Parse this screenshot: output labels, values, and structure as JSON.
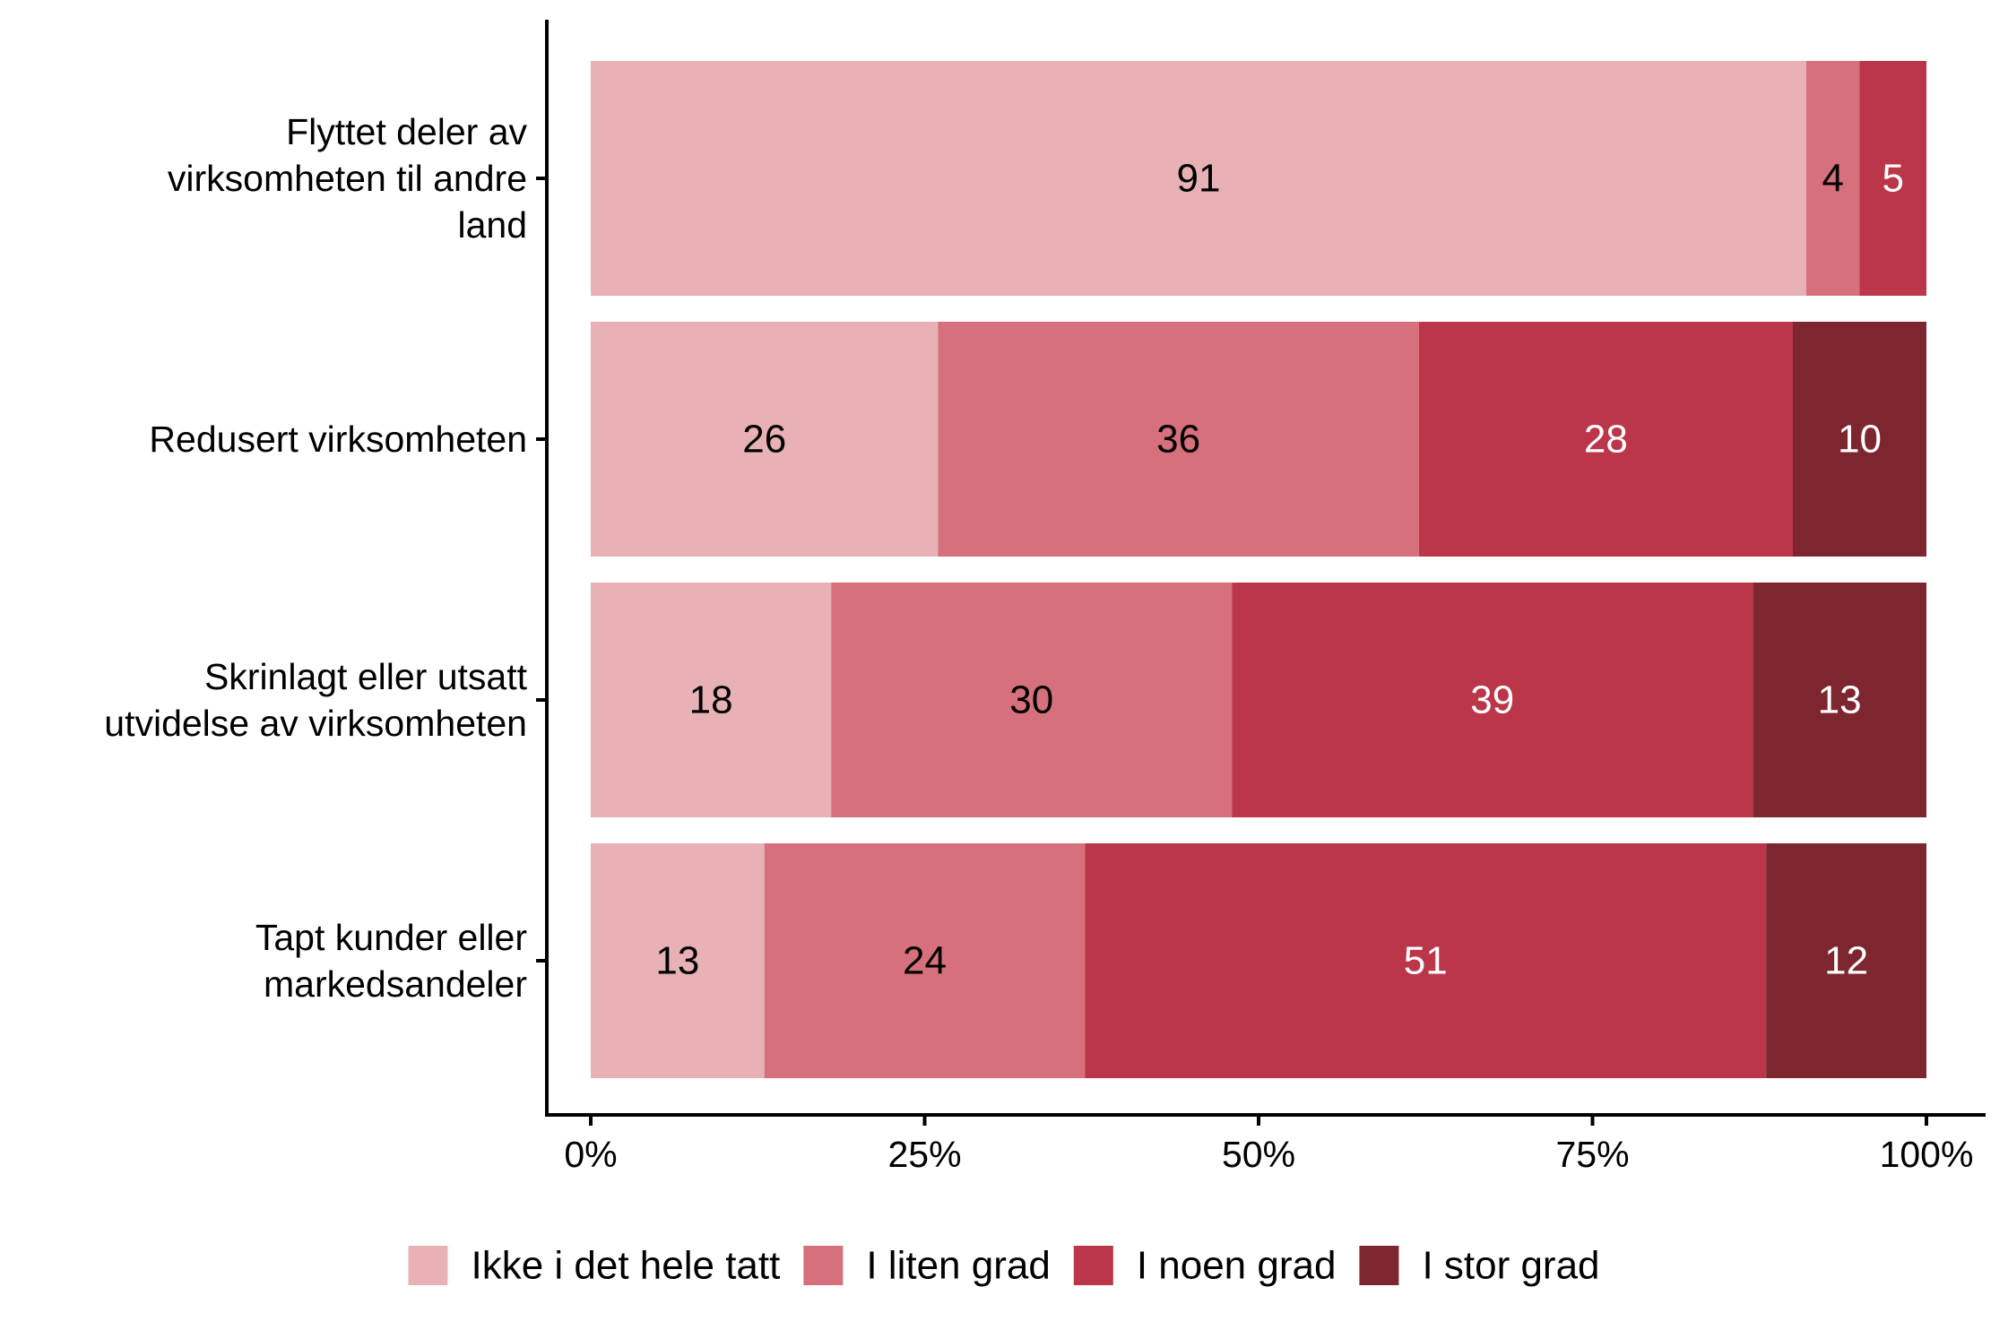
{
  "chart_data": {
    "type": "bar",
    "orientation": "horizontal",
    "stacked": true,
    "categories": [
      [
        "Flyttet deler av",
        "virksomheten til andre",
        "land"
      ],
      [
        "Redusert virksomheten"
      ],
      [
        "Skrinlagt eller utsatt",
        "utvidelse av virksomheten"
      ],
      [
        "Tapt kunder eller",
        "markedsandeler"
      ]
    ],
    "series": [
      {
        "name": "Ikke i det hele tatt",
        "color": "#e8b1b6",
        "label_color": "#000000",
        "values": [
          91,
          26,
          18,
          13
        ]
      },
      {
        "name": "I liten grad",
        "color": "#d6707c",
        "label_color": "#000000",
        "values": [
          4,
          36,
          30,
          24
        ]
      },
      {
        "name": "I noen grad",
        "color": "#bb3649",
        "label_color": "#ffffff",
        "values": [
          5,
          28,
          39,
          51
        ]
      },
      {
        "name": "I stor grad",
        "color": "#7e2630",
        "label_color": "#ffffff",
        "values": [
          0,
          10,
          13,
          12
        ]
      }
    ],
    "xlim": [
      0,
      100
    ],
    "xticks": [
      0,
      25,
      50,
      75,
      100
    ],
    "xtick_labels": [
      "0%",
      "25%",
      "50%",
      "75%",
      "100%"
    ],
    "xlabel": "",
    "ylabel": "",
    "grid": false,
    "legend_position": "bottom"
  }
}
